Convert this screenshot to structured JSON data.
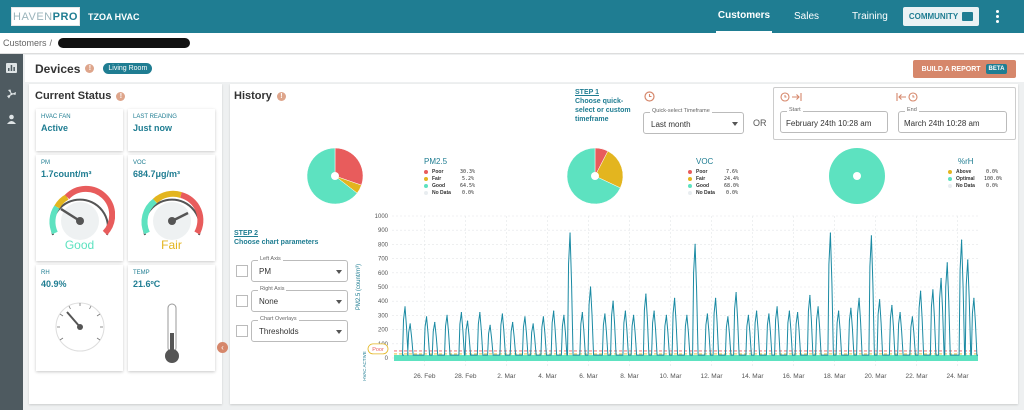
{
  "header": {
    "logo_part1": "HAVEN",
    "logo_part2": "PRO",
    "org": "TZOA HVAC",
    "nav": [
      {
        "label": "Customers",
        "active": true
      },
      {
        "label": "Sales",
        "active": false
      },
      {
        "label": "Training",
        "active": false
      }
    ],
    "community_label": "COMMUNITY"
  },
  "breadcrumb": {
    "root": "Customers",
    "sep": "/"
  },
  "devices": {
    "title": "Devices",
    "room": "Living Room",
    "build_report": "BUILD A REPORT",
    "beta": "BETA"
  },
  "status": {
    "title": "Current Status",
    "hvac_fan_label": "HVAC FAN",
    "hvac_fan_value": "Active",
    "last_reading_label": "LAST READING",
    "last_reading_value": "Just now",
    "pm_label": "PM",
    "pm_value": "1.7count/m³",
    "pm_quality": "Good",
    "voc_label": "VOC",
    "voc_value": "684.7μg/m³",
    "voc_quality": "Fair",
    "rh_label": "RH",
    "rh_value": "40.9%",
    "temp_label": "TEMP",
    "temp_value": "21.6ºC",
    "gauge_pm_level": 0.3,
    "gauge_voc_level": 0.55,
    "gauge_rh_level": 0.41
  },
  "history": {
    "title": "History",
    "step1_link": "STEP 1",
    "step1_text": [
      "Choose quick-",
      "select or custom",
      "timeframe"
    ],
    "quick_label": "Quick-select Timeframe",
    "quick_value": "Last month",
    "or": "OR",
    "start_label": "Start",
    "start_value": "February 24th 10:28 am",
    "end_label": "End",
    "end_value": "March 24th 10:28 am",
    "step2_link": "STEP 2",
    "step2_text": "Choose chart parameters",
    "left_axis_label": "Left Axis",
    "left_axis_value": "PM",
    "right_axis_label": "Right Axis",
    "right_axis_value": "None",
    "overlays_label": "Chart Overlays",
    "overlays_value": "Thresholds"
  },
  "pies": [
    {
      "title": "PM2.5",
      "rows": [
        {
          "name": "Poor",
          "pct": "30.3%",
          "color": "#e85c5c"
        },
        {
          "name": "Fair",
          "pct": "5.2%",
          "color": "#e3b51f"
        },
        {
          "name": "Good",
          "pct": "64.5%",
          "color": "#5de2c0"
        },
        {
          "name": "No Data",
          "pct": "0.0%",
          "color": "#e8edf0"
        }
      ]
    },
    {
      "title": "VOC",
      "rows": [
        {
          "name": "Poor",
          "pct": "7.6%",
          "color": "#e85c5c"
        },
        {
          "name": "Fair",
          "pct": "24.4%",
          "color": "#e3b51f"
        },
        {
          "name": "Good",
          "pct": "68.0%",
          "color": "#5de2c0"
        },
        {
          "name": "No Data",
          "pct": "0.0%",
          "color": "#e8edf0"
        }
      ]
    },
    {
      "title": "%rH",
      "rows": [
        {
          "name": "Above",
          "pct": "0.0%",
          "color": "#e3b51f"
        },
        {
          "name": "Optimal",
          "pct": "100.0%",
          "color": "#5de2c0"
        },
        {
          "name": "No Data",
          "pct": "0.0%",
          "color": "#e8edf0"
        }
      ]
    }
  ],
  "chart_data": {
    "type": "line",
    "ylabel": "PM2.5 (count/m³)",
    "ylim": [
      0,
      1000
    ],
    "yticks": [
      1000,
      900,
      800,
      700,
      600,
      500,
      400,
      300,
      200,
      100,
      0
    ],
    "xticks": [
      "26. Feb",
      "28. Feb",
      "2. Mar",
      "4. Mar",
      "6. Mar",
      "8. Mar",
      "10. Mar",
      "12. Mar",
      "14. Mar",
      "16. Mar",
      "18. Mar",
      "20. Mar",
      "22. Mar",
      "24. Mar"
    ],
    "threshold_label": "Poor",
    "threshold_value": 50,
    "hvac_label": "HVAC ACTIVE",
    "series": [
      {
        "name": "PM2.5",
        "color": "#1a8aa3",
        "peaks": [
          {
            "x": 0.05,
            "y": 360
          },
          {
            "x": 0.3,
            "y": 240
          },
          {
            "x": 1.1,
            "y": 290
          },
          {
            "x": 1.5,
            "y": 250
          },
          {
            "x": 2.1,
            "y": 300
          },
          {
            "x": 2.8,
            "y": 320
          },
          {
            "x": 3.1,
            "y": 260
          },
          {
            "x": 3.7,
            "y": 320
          },
          {
            "x": 4.2,
            "y": 230
          },
          {
            "x": 4.8,
            "y": 310
          },
          {
            "x": 5.3,
            "y": 250
          },
          {
            "x": 5.9,
            "y": 290
          },
          {
            "x": 6.3,
            "y": 240
          },
          {
            "x": 6.8,
            "y": 290
          },
          {
            "x": 7.3,
            "y": 330
          },
          {
            "x": 7.8,
            "y": 300
          },
          {
            "x": 8.1,
            "y": 880
          },
          {
            "x": 8.7,
            "y": 320
          },
          {
            "x": 9.1,
            "y": 500
          },
          {
            "x": 9.8,
            "y": 310
          },
          {
            "x": 10.2,
            "y": 400
          },
          {
            "x": 10.8,
            "y": 330
          },
          {
            "x": 11.2,
            "y": 300
          },
          {
            "x": 11.8,
            "y": 450
          },
          {
            "x": 12.2,
            "y": 330
          },
          {
            "x": 12.8,
            "y": 300
          },
          {
            "x": 13.2,
            "y": 420
          },
          {
            "x": 13.8,
            "y": 300
          },
          {
            "x": 14.2,
            "y": 800
          },
          {
            "x": 14.8,
            "y": 310
          },
          {
            "x": 15.2,
            "y": 420
          },
          {
            "x": 15.8,
            "y": 290
          },
          {
            "x": 16.2,
            "y": 460
          },
          {
            "x": 16.8,
            "y": 300
          },
          {
            "x": 17.2,
            "y": 330
          },
          {
            "x": 17.8,
            "y": 310
          },
          {
            "x": 18.2,
            "y": 360
          },
          {
            "x": 18.8,
            "y": 330
          },
          {
            "x": 19.2,
            "y": 320
          },
          {
            "x": 19.8,
            "y": 440
          },
          {
            "x": 20.2,
            "y": 360
          },
          {
            "x": 20.8,
            "y": 880
          },
          {
            "x": 21.2,
            "y": 330
          },
          {
            "x": 21.8,
            "y": 350
          },
          {
            "x": 22.2,
            "y": 420
          },
          {
            "x": 22.8,
            "y": 860
          },
          {
            "x": 23.2,
            "y": 410
          },
          {
            "x": 23.8,
            "y": 370
          },
          {
            "x": 24.2,
            "y": 320
          },
          {
            "x": 24.8,
            "y": 290
          },
          {
            "x": 25.2,
            "y": 470
          },
          {
            "x": 25.8,
            "y": 480
          },
          {
            "x": 26.2,
            "y": 560
          },
          {
            "x": 26.5,
            "y": 670
          },
          {
            "x": 27.2,
            "y": 830
          },
          {
            "x": 27.5,
            "y": 690
          },
          {
            "x": 27.8,
            "y": 420
          }
        ]
      }
    ]
  }
}
